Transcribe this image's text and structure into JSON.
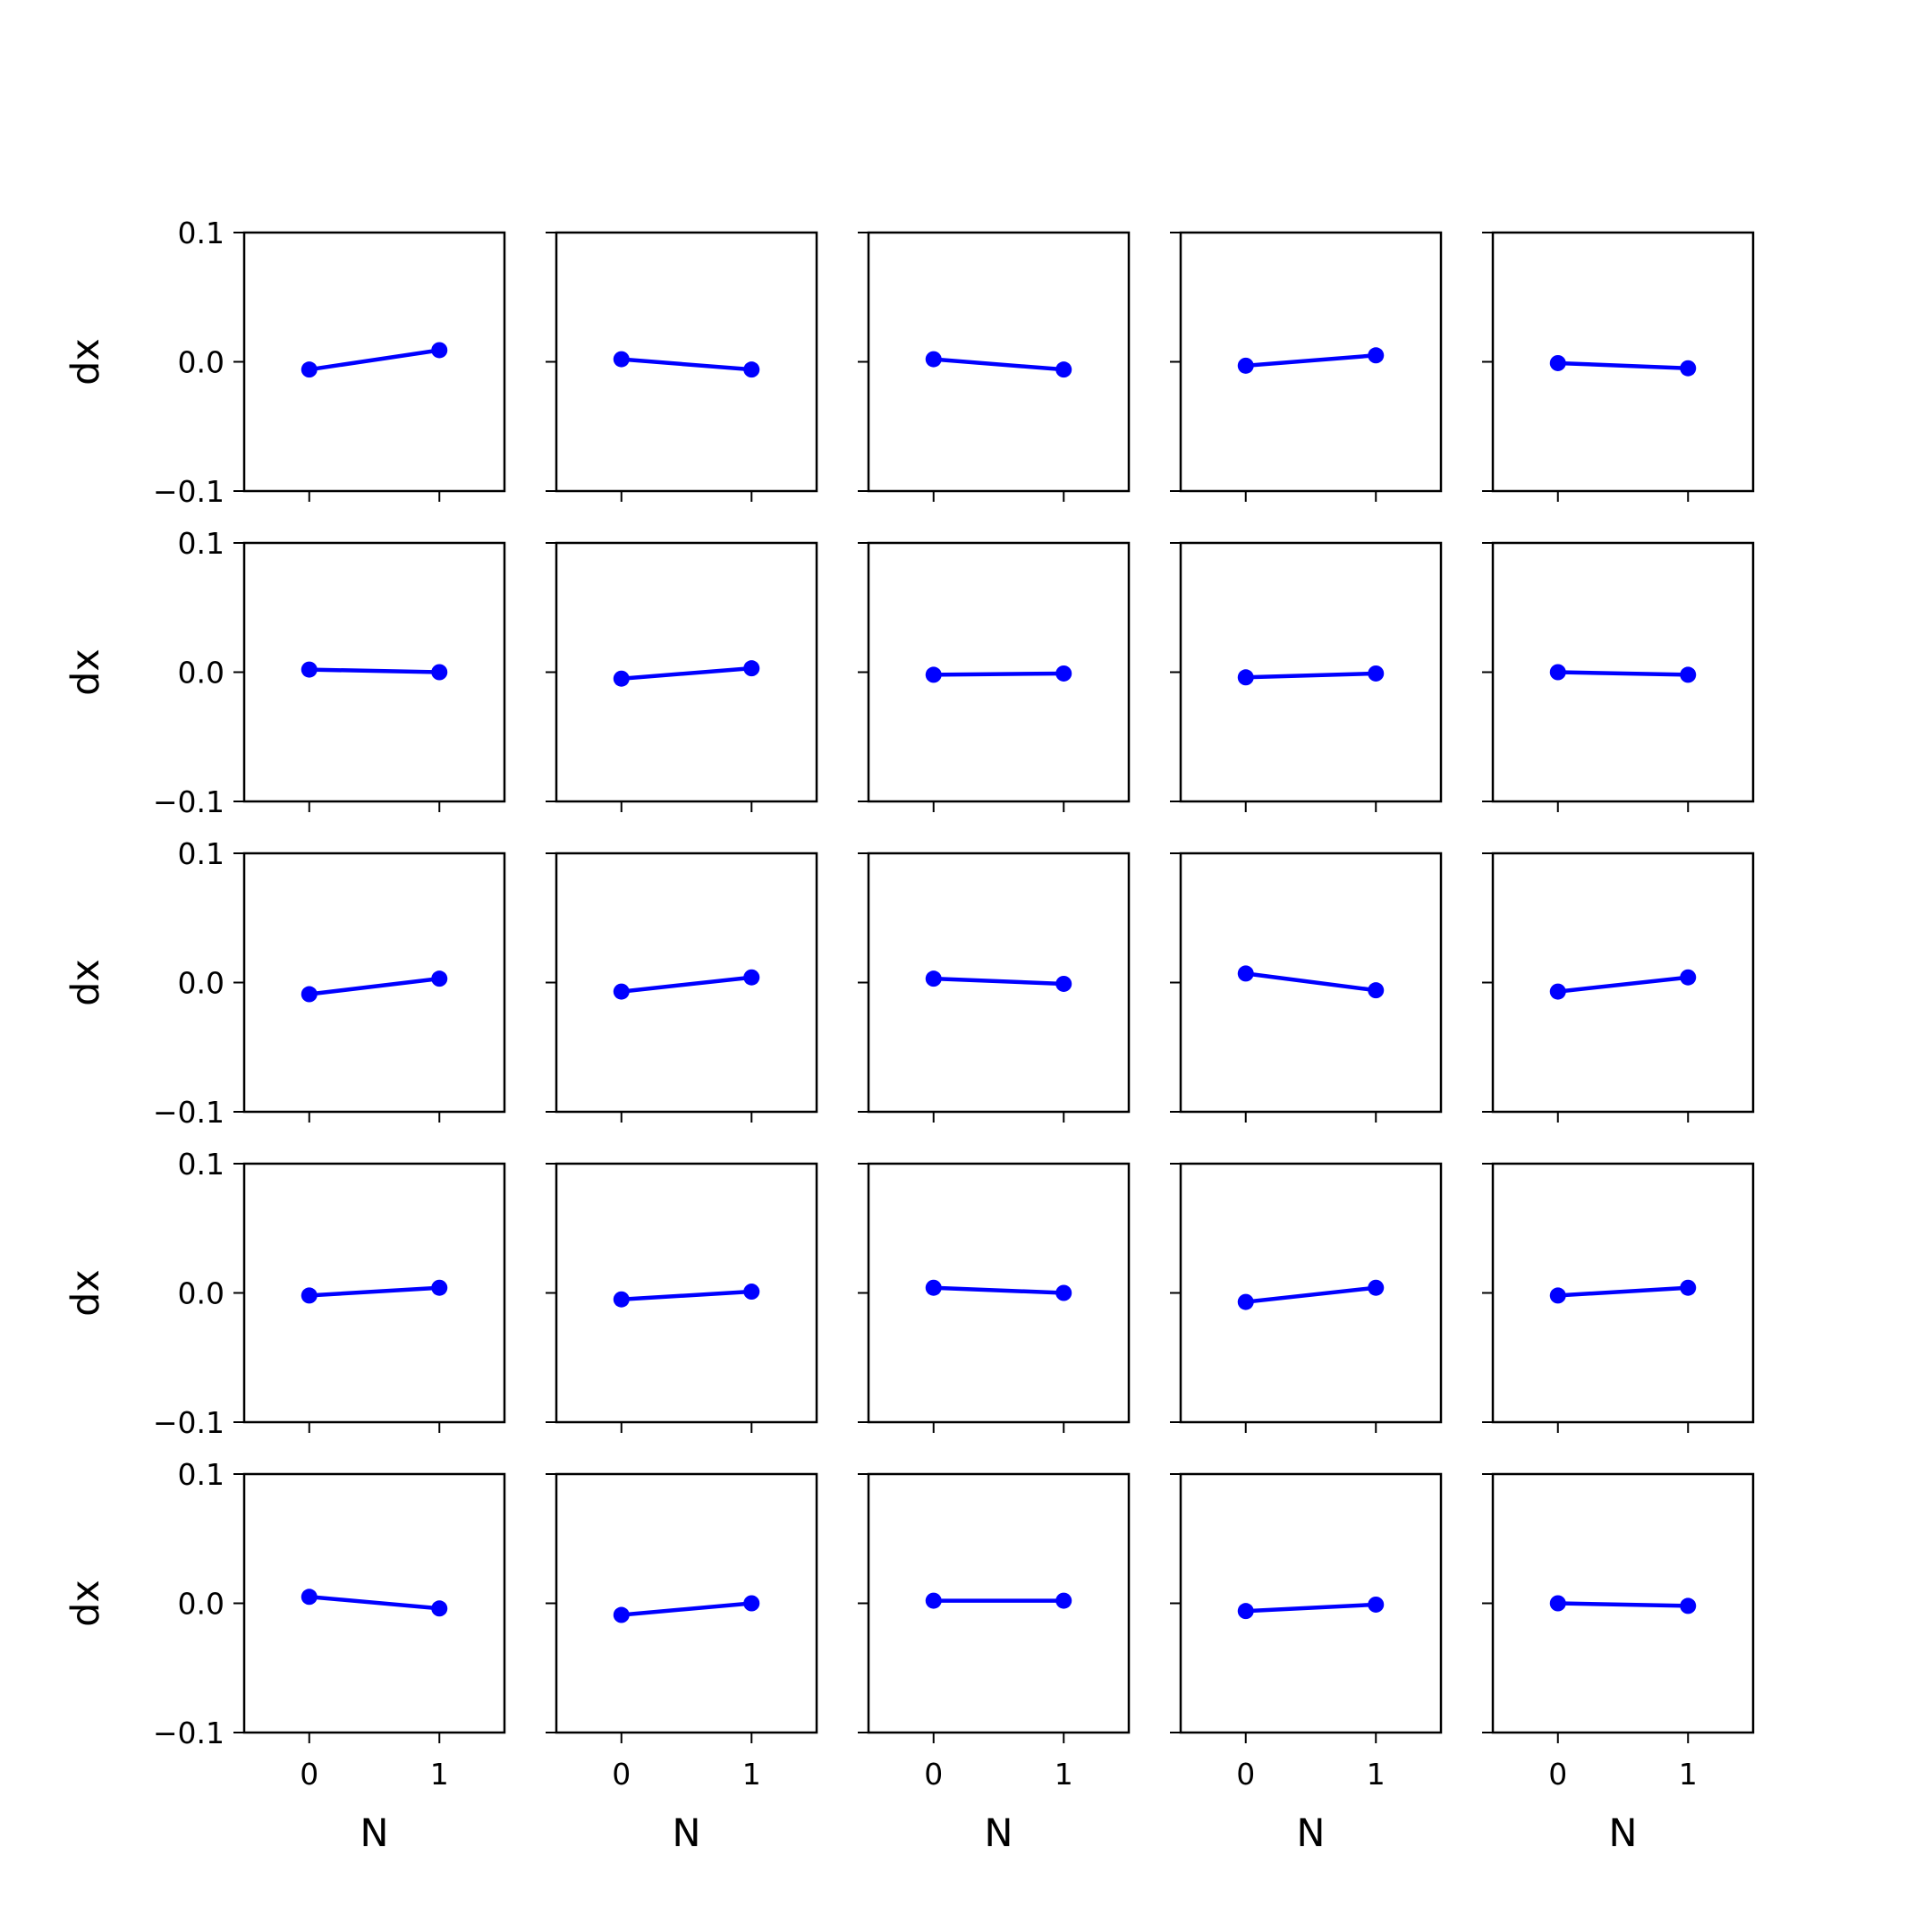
{
  "colors": {
    "line": "#0000ff",
    "marker": "#0000ff",
    "axes": "#000000",
    "background": "#ffffff"
  },
  "chart_data": {
    "type": "line",
    "layout": "5x5 grid of small multiples",
    "shared_x": true,
    "shared_y": true,
    "xlabel": "N",
    "ylabel": "dx",
    "xlim": [
      -0.5,
      1.5
    ],
    "ylim": [
      -0.1,
      0.1
    ],
    "xticks": [
      0,
      1
    ],
    "xtick_labels": [
      "0",
      "1"
    ],
    "yticks": [
      -0.1,
      0.0,
      0.1
    ],
    "ytick_labels": [
      "−0.1",
      "0.0",
      "0.1"
    ],
    "grid": false,
    "marker": "circle",
    "x": [
      0,
      1
    ],
    "panels": [
      [
        [
          -0.006,
          0.009
        ],
        [
          0.002,
          -0.006
        ],
        [
          0.002,
          -0.006
        ],
        [
          -0.003,
          0.005
        ],
        [
          -0.001,
          -0.005
        ]
      ],
      [
        [
          0.002,
          0.0
        ],
        [
          -0.005,
          0.003
        ],
        [
          -0.002,
          -0.001
        ],
        [
          -0.004,
          -0.001
        ],
        [
          0.0,
          -0.002
        ]
      ],
      [
        [
          -0.009,
          0.003
        ],
        [
          -0.007,
          0.004
        ],
        [
          0.003,
          -0.001
        ],
        [
          0.007,
          -0.006
        ],
        [
          -0.007,
          0.004
        ]
      ],
      [
        [
          -0.002,
          0.004
        ],
        [
          -0.005,
          0.001
        ],
        [
          0.004,
          0.0
        ],
        [
          -0.007,
          0.004
        ],
        [
          -0.002,
          0.004
        ]
      ],
      [
        [
          0.005,
          -0.004
        ],
        [
          -0.009,
          0.0
        ],
        [
          0.002,
          0.002
        ],
        [
          -0.006,
          -0.001
        ],
        [
          0.0,
          -0.002
        ]
      ]
    ]
  }
}
